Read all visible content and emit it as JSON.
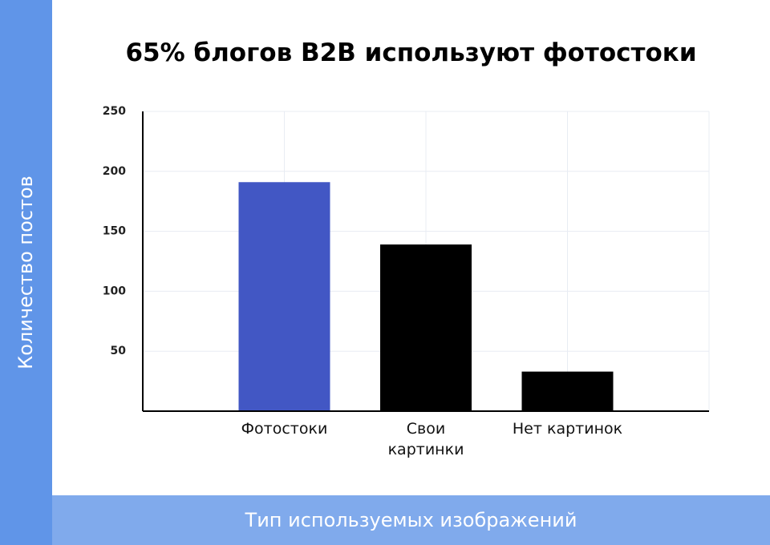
{
  "chart_data": {
    "type": "bar",
    "title": "65% блогов B2B используют фотостоки",
    "x_label": "Тип используемых изображений",
    "y_label": "Количество постов",
    "categories": [
      "Фотостоки",
      "Свои\nкартинки",
      "Нет картинок"
    ],
    "values": [
      191,
      139,
      33
    ],
    "colors": [
      "#4257c4",
      "#000000",
      "#000000"
    ],
    "ylim": [
      0,
      250
    ],
    "yticks": [
      50,
      100,
      150,
      200,
      250
    ],
    "grid": true
  }
}
